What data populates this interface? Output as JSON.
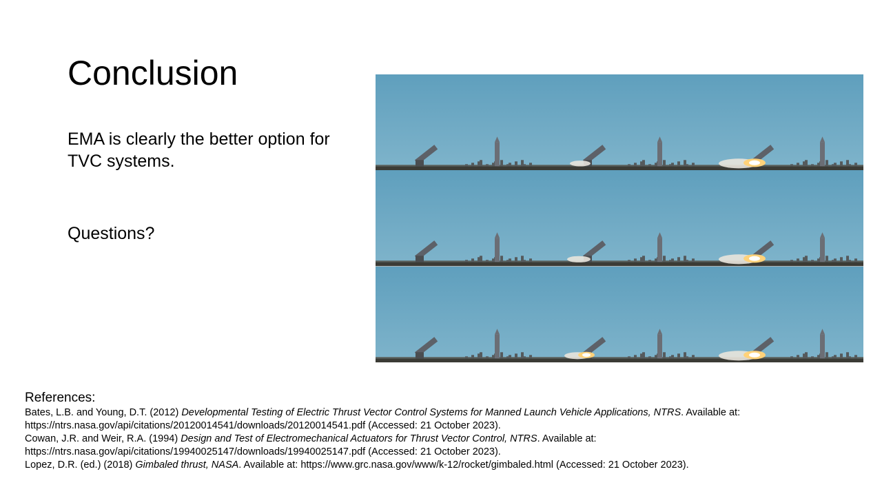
{
  "slide": {
    "title": "Conclusion",
    "statement": "EMA is clearly the better option for TVC systems.",
    "questions": "Questions?"
  },
  "photo_grid": {
    "rows": 3,
    "columns": 3,
    "frames": [
      {
        "fire": 0,
        "slide_x": 0
      },
      {
        "fire": 0.3,
        "slide_x": 1
      },
      {
        "fire": 1,
        "slide_x": 2
      },
      {
        "fire": 0,
        "slide_x": 0
      },
      {
        "fire": 0.4,
        "slide_x": 1
      },
      {
        "fire": 1,
        "slide_x": 2
      },
      {
        "fire": 0,
        "slide_x": 0
      },
      {
        "fire": 0.5,
        "slide_x": 1
      },
      {
        "fire": 1,
        "slide_x": 2
      }
    ],
    "colors": {
      "sky_top": "#5f9fbd",
      "sky_bottom": "#7fb4cb",
      "ground": "#3b3b35",
      "rocket": "#6b6e75",
      "flame": "#ffd27a",
      "smoke": "#e9e4dc"
    }
  },
  "references": {
    "heading": "References:",
    "entries": [
      {
        "prefix": "Bates, L.B. and Young,  D.T. (2012) ",
        "title": "Developmental Testing of Electric Thrust Vector Control Systems for Manned Launch Vehicle Applications, NTRS",
        "suffix": ". Available at: https://ntrs.nasa.gov/api/citations/20120014541/downloads/20120014541.pdf  (Accessed: 21 October 2023)."
      },
      {
        "prefix": "Cowan, J.R. and Weir, R.A. (1994) ",
        "title": "Design and Test of Electromechanical Actuators for Thrust Vector Control, NTRS",
        "suffix": ". Available at: https://ntrs.nasa.gov/api/citations/19940025147/downloads/19940025147.pdf  (Accessed: 21 October 2023)."
      },
      {
        "prefix": "Lopez, D.R. (ed.) (2018) ",
        "title": "Gimbaled thrust, NASA",
        "suffix": ". Available at: https://www.grc.nasa.gov/www/k-12/rocket/gimbaled.html  (Accessed: 21 October 2023)."
      }
    ]
  }
}
